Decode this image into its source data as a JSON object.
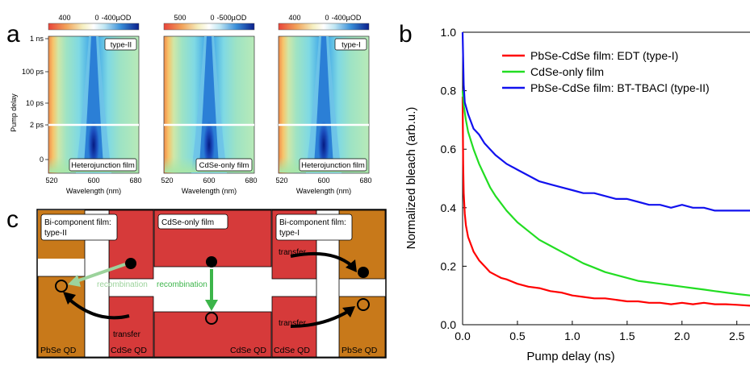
{
  "panels": {
    "a_letter": "a",
    "b_letter": "b",
    "c_letter": "c"
  },
  "heatmaps": [
    {
      "colorbar_ticks": [
        "400",
        "0",
        "-400µOD"
      ],
      "tag": "type-II",
      "film_label": "Heterojunction film",
      "center_nm": 600,
      "peak_blue": "#0a1f8c",
      "mid_blue": "#2b7fd6",
      "halo": "#6ec3e8"
    },
    {
      "colorbar_ticks": [
        "500",
        "0",
        "-500µOD"
      ],
      "tag": "",
      "film_label": "CdSe-only film",
      "center_nm": 600,
      "peak_blue": "#0a1f8c",
      "mid_blue": "#2b7fd6",
      "halo": "#6ec3e8"
    },
    {
      "colorbar_ticks": [
        "400",
        "0",
        "-400µOD"
      ],
      "tag": "type-I",
      "film_label": "Heterojunction film",
      "center_nm": 600,
      "peak_blue": "#0a1f8c",
      "mid_blue": "#2b7fd6",
      "halo": "#6ec3e8"
    }
  ],
  "heatmap_axes": {
    "ylabel": "Pump delay",
    "yticks": [
      "1 ns",
      "100 ps",
      "10 ps",
      "2 ps",
      "0"
    ],
    "xlabel": "Wavelength (nm)",
    "xticks": [
      "520",
      "600",
      "680"
    ]
  },
  "diagram": {
    "box_left": "Bi-component film:\ntype-II",
    "box_mid": "CdSe-only film",
    "box_right": "Bi-component film:\ntype-I",
    "recombination_left": "recombination",
    "recombination_mid": "recombination",
    "transfer_left": "transfer",
    "transfer_right_top": "transfer",
    "transfer_right_bottom": "transfer",
    "qd_labels": [
      "PbSe QD",
      "CdSe QD",
      "CdSe QD",
      "CdSe QD",
      "PbSe QD"
    ],
    "colors": {
      "pbse": "#c8791a",
      "cdse": "#d63a3a",
      "light_green": "#9cd39c",
      "green": "#3cb54a"
    }
  },
  "chart_data": {
    "type": "line",
    "title": "",
    "xlabel": "Pump delay (ns)",
    "ylabel": "Normalized bleach (arb.u.)",
    "xlim": [
      0,
      2.62
    ],
    "ylim": [
      0,
      1.0
    ],
    "xticks": [
      0.0,
      0.5,
      1.0,
      1.5,
      2.0,
      2.5
    ],
    "yticks": [
      0.0,
      0.2,
      0.4,
      0.6,
      0.8,
      1.0
    ],
    "legend_position": "top-right",
    "series": [
      {
        "name": "PbSe-CdSe film: EDT (type-I)",
        "color": "#ff0000",
        "x": [
          0,
          0.005,
          0.01,
          0.02,
          0.03,
          0.05,
          0.08,
          0.1,
          0.15,
          0.2,
          0.25,
          0.3,
          0.35,
          0.4,
          0.5,
          0.6,
          0.7,
          0.8,
          0.9,
          1.0,
          1.1,
          1.2,
          1.3,
          1.4,
          1.5,
          1.6,
          1.7,
          1.8,
          1.9,
          2.0,
          2.1,
          2.2,
          2.3,
          2.4,
          2.5,
          2.62
        ],
        "values": [
          0.78,
          0.55,
          0.45,
          0.38,
          0.34,
          0.3,
          0.27,
          0.25,
          0.22,
          0.2,
          0.18,
          0.17,
          0.16,
          0.155,
          0.14,
          0.13,
          0.125,
          0.115,
          0.11,
          0.1,
          0.095,
          0.09,
          0.09,
          0.085,
          0.08,
          0.08,
          0.075,
          0.075,
          0.07,
          0.075,
          0.07,
          0.075,
          0.07,
          0.07,
          0.068,
          0.065
        ]
      },
      {
        "name": "CdSe-only film",
        "color": "#22dd22",
        "x": [
          0,
          0.01,
          0.03,
          0.05,
          0.1,
          0.15,
          0.2,
          0.25,
          0.3,
          0.4,
          0.5,
          0.6,
          0.7,
          0.8,
          0.9,
          1.0,
          1.1,
          1.2,
          1.3,
          1.4,
          1.5,
          1.6,
          1.7,
          1.8,
          1.9,
          2.0,
          2.1,
          2.2,
          2.3,
          2.4,
          2.5,
          2.62
        ],
        "values": [
          0.8,
          0.75,
          0.7,
          0.66,
          0.6,
          0.55,
          0.51,
          0.47,
          0.44,
          0.39,
          0.35,
          0.32,
          0.29,
          0.27,
          0.25,
          0.23,
          0.21,
          0.195,
          0.18,
          0.17,
          0.16,
          0.15,
          0.145,
          0.14,
          0.135,
          0.13,
          0.125,
          0.12,
          0.115,
          0.11,
          0.105,
          0.1
        ]
      },
      {
        "name": "PbSe-CdSe film: BT-TBACl (type-II)",
        "color": "#1111ee",
        "x": [
          0,
          0.01,
          0.02,
          0.05,
          0.1,
          0.15,
          0.2,
          0.25,
          0.3,
          0.4,
          0.5,
          0.6,
          0.7,
          0.8,
          0.9,
          1.0,
          1.1,
          1.2,
          1.3,
          1.4,
          1.5,
          1.6,
          1.7,
          1.8,
          1.9,
          2.0,
          2.1,
          2.2,
          2.3,
          2.4,
          2.5,
          2.62
        ],
        "values": [
          1.0,
          0.82,
          0.76,
          0.72,
          0.67,
          0.65,
          0.62,
          0.6,
          0.58,
          0.55,
          0.53,
          0.51,
          0.49,
          0.48,
          0.47,
          0.46,
          0.45,
          0.45,
          0.44,
          0.43,
          0.43,
          0.42,
          0.41,
          0.41,
          0.4,
          0.41,
          0.4,
          0.4,
          0.39,
          0.39,
          0.39,
          0.39
        ]
      }
    ]
  }
}
